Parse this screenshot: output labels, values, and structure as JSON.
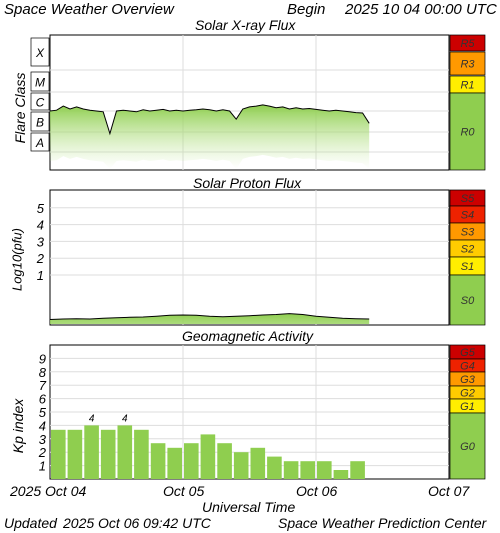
{
  "header": {
    "title": "Space Weather Overview",
    "begin_label": "Begin",
    "begin_value": "2025 10 04 00:00 UTC"
  },
  "footer": {
    "updated_label": "Updated",
    "updated_value": "2025 Oct 06 09:42 UTC",
    "credit": "Space Weather Prediction Center"
  },
  "colors": {
    "panel_bg": "#ffffff",
    "grid": "#dddddd",
    "green": "#8fce4f",
    "green_light": "#c5e8a0",
    "scale_colors": {
      "5": "#cc0000",
      "4": "#ee2200",
      "3": "#ff9900",
      "2": "#ffcc00",
      "1": "#ffee00",
      "0": "#8fce4f"
    }
  },
  "chart_data": [
    {
      "type": "line",
      "title": "Solar X-ray Flux",
      "ylabel": "Flare Class",
      "classes": [
        "X",
        "M",
        "C",
        "B",
        "A"
      ],
      "scale_labels": [
        "R5",
        "R3",
        "R1",
        "R0"
      ],
      "series": [
        {
          "x": [
            0,
            0.05,
            0.1,
            0.15,
            0.2,
            0.25,
            0.3,
            0.35,
            0.4,
            0.45,
            0.5,
            0.55,
            0.6,
            0.65,
            0.7,
            0.75,
            0.8,
            0.85,
            0.9,
            0.95,
            1.0,
            1.05,
            1.1,
            1.15,
            1.2,
            1.25,
            1.3,
            1.35,
            1.4,
            1.45,
            1.5,
            1.55,
            1.6,
            1.65,
            1.7,
            1.75,
            1.8,
            1.85,
            1.9,
            1.95,
            2.0,
            2.05,
            2.1,
            2.15,
            2.2,
            2.25,
            2.3,
            2.35,
            2.4
          ],
          "y": [
            1.0,
            1.02,
            1.12,
            1.05,
            1.1,
            1.05,
            1.02,
            1.0,
            0.98,
            0.45,
            1.0,
            1.02,
            1.0,
            0.98,
            1.03,
            1.0,
            1.02,
            1.04,
            1.0,
            1.02,
            1.0,
            1.02,
            1.03,
            1.05,
            1.03,
            1.0,
            1.03,
            1.0,
            0.8,
            1.05,
            1.1,
            1.12,
            1.15,
            1.12,
            1.08,
            1.1,
            1.05,
            1.08,
            1.05,
            1.06,
            1.04,
            1.02,
            1.0,
            1.02,
            1.0,
            0.98,
            0.96,
            0.95,
            0.7
          ]
        }
      ]
    },
    {
      "type": "line",
      "title": "Solar Proton Flux",
      "ylabel": "Log10(pfu)",
      "yticks": [
        "1",
        "2",
        "3",
        "4",
        "5"
      ],
      "scale_labels": [
        "S5",
        "S4",
        "S3",
        "S2",
        "S1",
        "S0"
      ],
      "series": [
        {
          "x": [
            0,
            0.1,
            0.2,
            0.3,
            0.4,
            0.5,
            0.6,
            0.7,
            0.8,
            0.9,
            1.0,
            1.1,
            1.2,
            1.3,
            1.4,
            1.5,
            1.6,
            1.7,
            1.8,
            1.9,
            2.0,
            2.1,
            2.2,
            2.3,
            2.4
          ],
          "y": [
            -1.65,
            -1.62,
            -1.6,
            -1.62,
            -1.58,
            -1.55,
            -1.52,
            -1.5,
            -1.45,
            -1.4,
            -1.38,
            -1.4,
            -1.45,
            -1.48,
            -1.45,
            -1.42,
            -1.38,
            -1.35,
            -1.3,
            -1.35,
            -1.45,
            -1.52,
            -1.58,
            -1.6,
            -1.62
          ]
        }
      ]
    },
    {
      "type": "bar",
      "title": "Geomagnetic Activity",
      "ylabel": "Kp index",
      "yticks": [
        "1",
        "2",
        "3",
        "4",
        "5",
        "6",
        "7",
        "8",
        "9"
      ],
      "scale_labels": [
        "G5",
        "G4",
        "G3",
        "G2",
        "G1",
        "G0"
      ],
      "xlabel": "Universal Time",
      "xticks": [
        "2025 Oct 04",
        "Oct 05",
        "Oct 06",
        "Oct 07"
      ],
      "bar_width_hours": 3,
      "values": [
        3.67,
        3.67,
        4.0,
        3.67,
        4.0,
        3.67,
        2.67,
        2.33,
        2.67,
        3.33,
        2.67,
        2.0,
        2.33,
        1.67,
        1.33,
        1.33,
        1.33,
        0.67,
        1.33
      ],
      "data_labels": [
        "",
        "",
        "4",
        "",
        "4",
        "",
        "",
        "",
        "",
        "",
        "",
        "",
        "",
        "",
        "",
        "",
        "",
        "",
        ""
      ],
      "ylim": [
        0,
        10
      ],
      "xlim": [
        0,
        72
      ]
    }
  ]
}
